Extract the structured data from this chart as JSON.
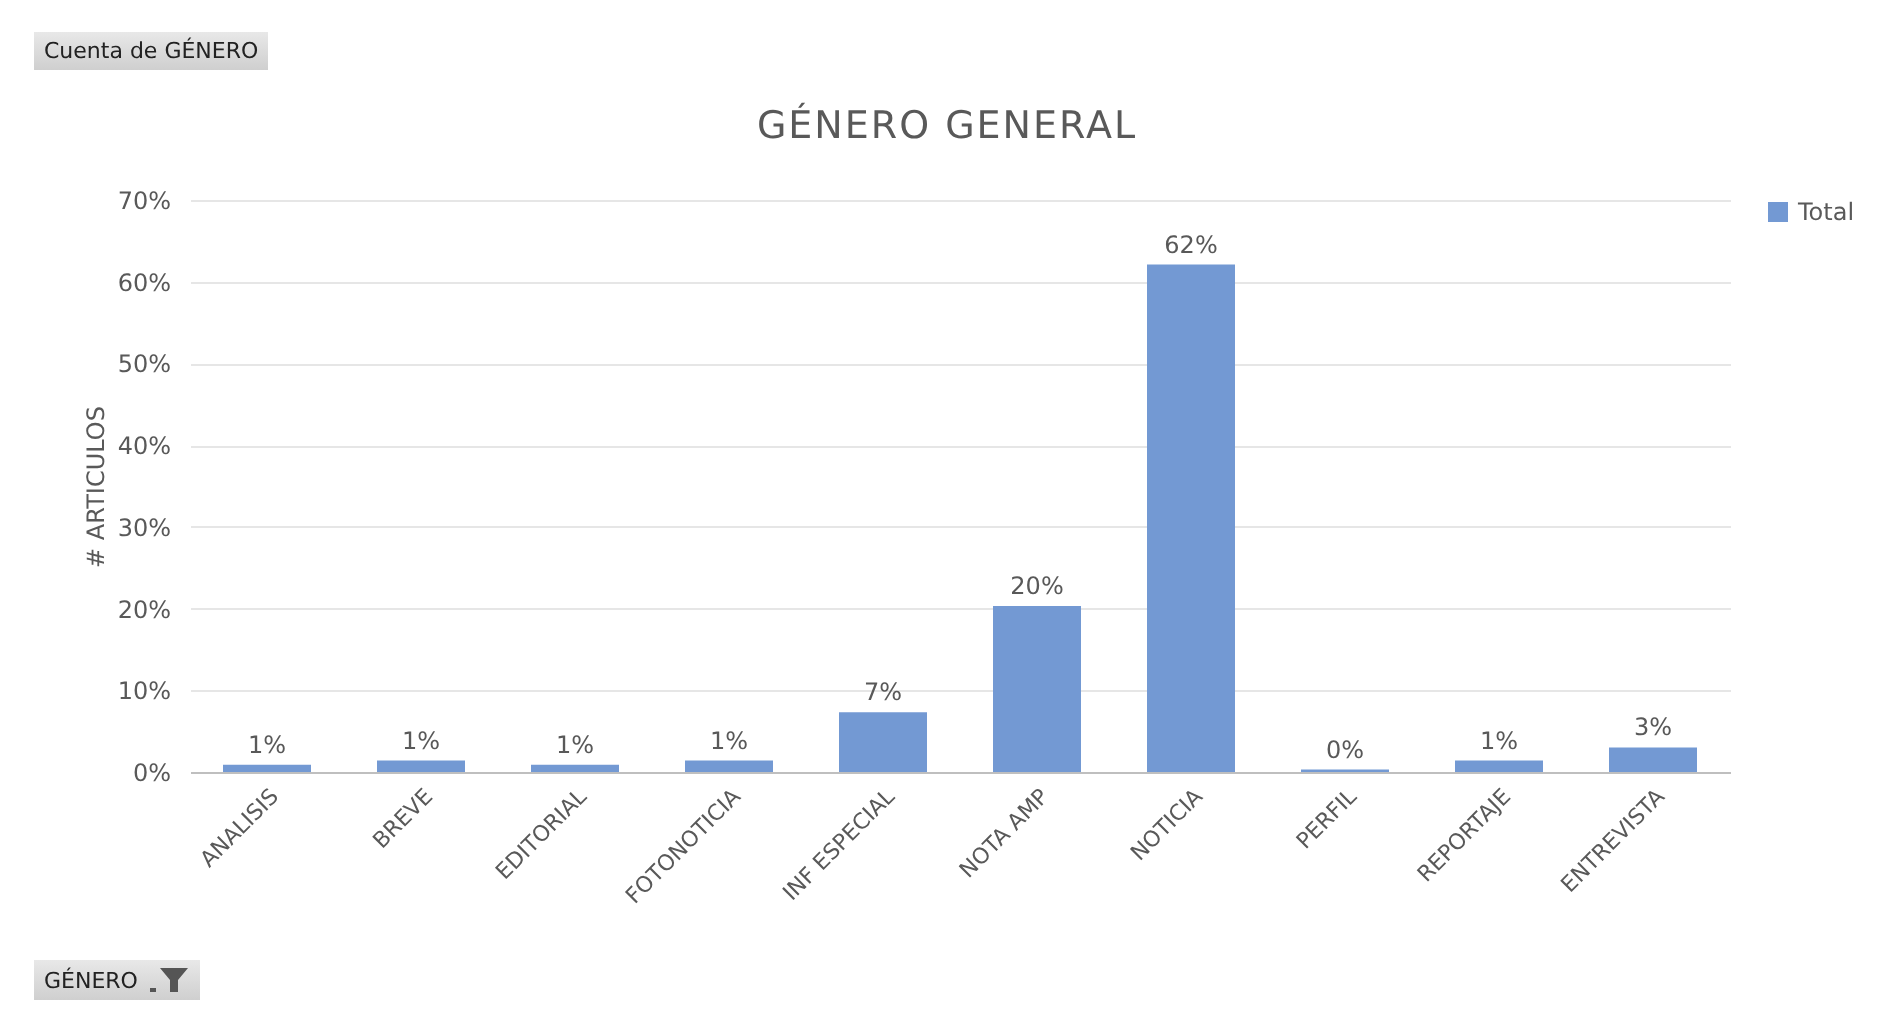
{
  "chart_data": {
    "type": "bar",
    "title": "GÉNERO GENERAL",
    "ylabel": "# ARTICULOS",
    "categories": [
      "ANALISIS",
      "BREVE",
      "EDITORIAL",
      "FOTONOTICIA",
      "INF ESPECIAL",
      "NOTA AMP",
      "NOTICIA",
      "PERFIL",
      "REPORTAJE",
      "ENTREVISTA"
    ],
    "series": [
      {
        "name": "Total",
        "color": "#7399d3",
        "values": [
          0.9,
          1.4,
          0.9,
          1.4,
          7.3,
          20.3,
          62.1,
          0.3,
          1.4,
          3.0
        ],
        "value_labels": [
          "1%",
          "1%",
          "1%",
          "1%",
          "7%",
          "20%",
          "62%",
          "0%",
          "1%",
          "3%"
        ]
      }
    ],
    "ylim": [
      0,
      70
    ],
    "yticks": [
      {
        "value": 0,
        "label": "0%"
      },
      {
        "value": 10,
        "label": "10%"
      },
      {
        "value": 20,
        "label": "20%"
      },
      {
        "value": 30,
        "label": "30%"
      },
      {
        "value": 40,
        "label": "40%"
      },
      {
        "value": 50,
        "label": "50%"
      },
      {
        "value": 60,
        "label": "60%"
      },
      {
        "value": 70,
        "label": "70%"
      }
    ],
    "grid": "y",
    "legend": "right",
    "annotations": [
      "Cuenta de GÉNERO",
      "GÉNERO"
    ]
  }
}
